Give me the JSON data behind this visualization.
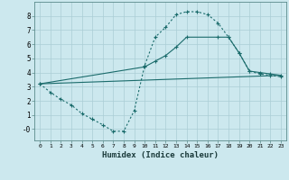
{
  "xlabel": "Humidex (Indice chaleur)",
  "bg_color": "#cce8ee",
  "grid_color": "#aacdd5",
  "line_color": "#1a6b6b",
  "xlim": [
    -0.5,
    23.5
  ],
  "ylim": [
    -0.8,
    9.0
  ],
  "xticks": [
    0,
    1,
    2,
    3,
    4,
    5,
    6,
    7,
    8,
    9,
    10,
    11,
    12,
    13,
    14,
    15,
    16,
    17,
    18,
    19,
    20,
    21,
    22,
    23
  ],
  "yticks": [
    0,
    1,
    2,
    3,
    4,
    5,
    6,
    7,
    8
  ],
  "ytick_labels": [
    "-0",
    "1",
    "2",
    "3",
    "4",
    "5",
    "6",
    "7",
    "8"
  ],
  "line1_x": [
    0,
    1,
    2,
    3,
    4,
    5,
    6,
    7,
    8,
    9,
    10,
    11,
    12,
    13,
    14,
    15,
    16,
    17,
    18,
    19,
    20,
    21,
    22,
    23
  ],
  "line1_y": [
    3.2,
    2.6,
    2.1,
    1.7,
    1.1,
    0.7,
    0.3,
    -0.15,
    -0.15,
    1.3,
    4.5,
    6.5,
    7.2,
    8.1,
    8.3,
    8.3,
    8.1,
    7.5,
    6.5,
    5.4,
    4.1,
    3.9,
    3.8,
    3.7
  ],
  "line2_x": [
    0,
    23
  ],
  "line2_y": [
    3.2,
    3.8
  ],
  "line3_x": [
    0,
    10,
    11,
    12,
    13,
    14,
    17,
    18,
    19,
    20,
    21,
    22,
    23
  ],
  "line3_y": [
    3.2,
    4.4,
    4.8,
    5.2,
    5.8,
    6.5,
    6.5,
    6.5,
    5.4,
    4.1,
    4.0,
    3.9,
    3.8
  ]
}
